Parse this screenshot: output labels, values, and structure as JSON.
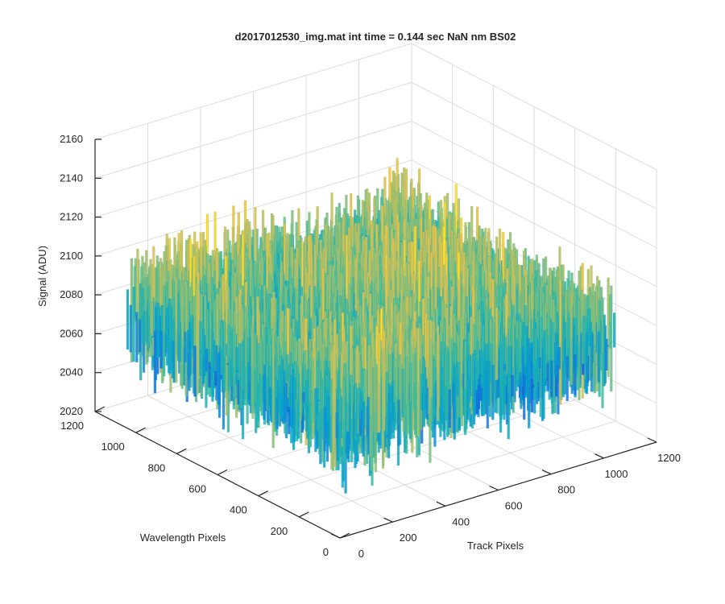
{
  "chart_data": {
    "type": "surface",
    "title": "d2017012530_img.mat int time = 0.144 sec  NaN nm BS02",
    "zlabel": "Signal (ADU)",
    "xlabel": "Track Pixels",
    "ylabel": "Wavelength Pixels",
    "xlim": [
      0,
      1200
    ],
    "ylim": [
      0,
      1200
    ],
    "zlim": [
      2020,
      2160
    ],
    "x_ticks": [
      0,
      200,
      400,
      600,
      800,
      1000,
      1200
    ],
    "y_ticks": [
      0,
      200,
      400,
      600,
      800,
      1000,
      1200
    ],
    "z_ticks": [
      2020,
      2040,
      2060,
      2080,
      2100,
      2120,
      2140,
      2160
    ],
    "x_tick_labels": [
      "0",
      "200",
      "400",
      "600",
      "800",
      "1000",
      "1200"
    ],
    "y_tick_labels": [
      "0",
      "200",
      "400",
      "600",
      "800",
      "1000",
      "1200"
    ],
    "z_tick_labels": [
      "2020",
      "2040",
      "2060",
      "2080",
      "2100",
      "2120",
      "2140",
      "2160"
    ],
    "data_extent": {
      "x": [
        0,
        1040
      ],
      "y": [
        0,
        1040
      ]
    },
    "signal_summary": {
      "mean": 2085,
      "approx_min": 2026,
      "approx_max": 2150
    },
    "colormap": "parula",
    "grid": true,
    "box": "partial"
  }
}
